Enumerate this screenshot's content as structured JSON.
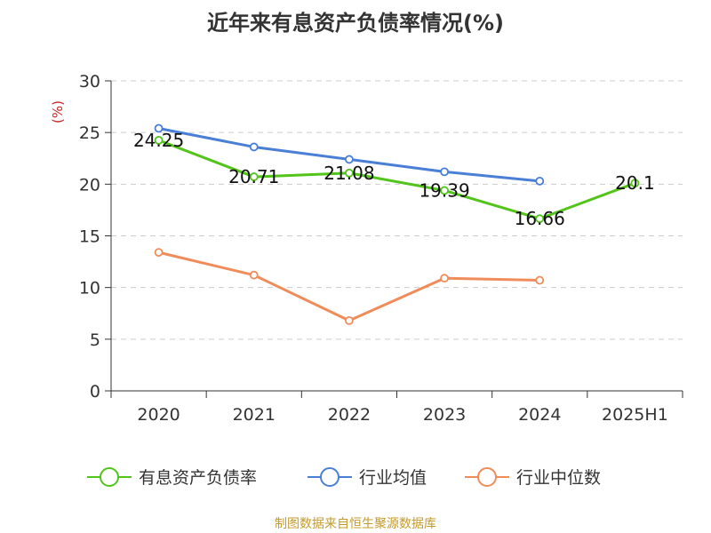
{
  "title": "近年来有息资产负债率情况(%)",
  "source": "制图数据来自恒生聚源数据库",
  "chart_data": {
    "type": "line",
    "title": "近年来有息资产负债率情况(%)",
    "ylabel": "(%)",
    "categories": [
      "2020",
      "2021",
      "2022",
      "2023",
      "2024",
      "2025H1"
    ],
    "ylim": [
      0,
      30
    ],
    "yticks": [
      0,
      5,
      10,
      15,
      20,
      25,
      30
    ],
    "grid": true,
    "legend_position": "bottom",
    "series": [
      {
        "name": "有息资产负债率",
        "color": "#52c41a",
        "values": [
          24.25,
          20.71,
          21.08,
          19.39,
          16.66,
          20.1
        ],
        "labels": [
          "24.25",
          "20.71",
          "21.08",
          "19.39",
          "16.66",
          "20.1"
        ]
      },
      {
        "name": "行业均值",
        "color": "#4a7fd6",
        "values": [
          25.4,
          23.6,
          22.4,
          21.2,
          20.3,
          null
        ]
      },
      {
        "name": "行业中位数",
        "color": "#f08c5a",
        "values": [
          13.4,
          11.2,
          6.8,
          10.9,
          10.7,
          null
        ]
      }
    ]
  }
}
